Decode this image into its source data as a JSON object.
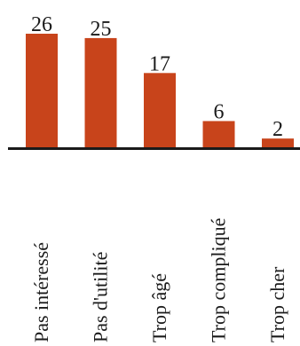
{
  "chart_data": {
    "type": "bar",
    "categories": [
      "Pas intéressé",
      "Pas d'utilité",
      "Trop âgé",
      "Trop compliqué",
      "Trop cher"
    ],
    "values": [
      26,
      25,
      17,
      6,
      2
    ],
    "title": "",
    "xlabel": "",
    "ylabel": "",
    "ylim": [
      0,
      26
    ],
    "grid": false,
    "legend": "none",
    "bar_color": "#c8441b",
    "axis_color": "#1a1a1a"
  }
}
